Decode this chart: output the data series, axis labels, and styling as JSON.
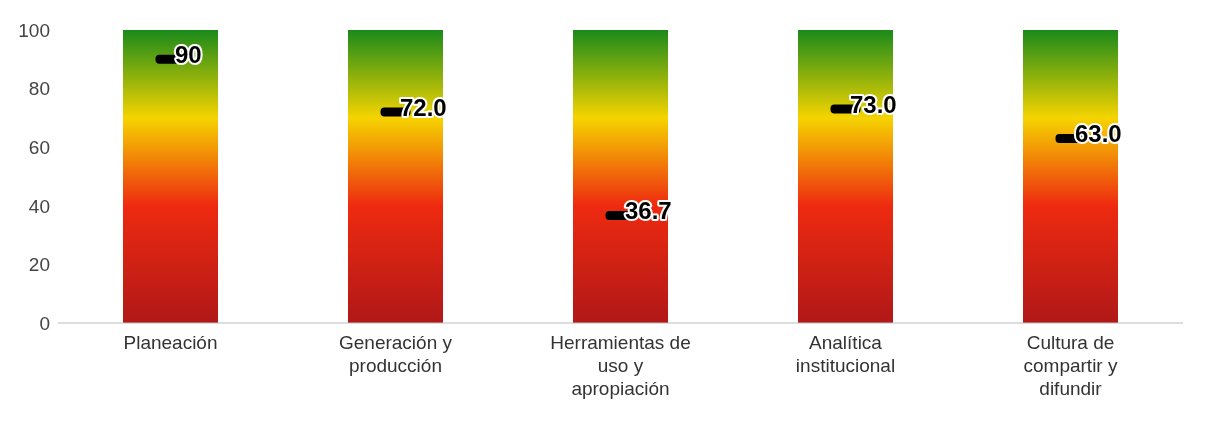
{
  "chart_data": {
    "type": "bar",
    "categories": [
      "Planeación",
      "Generación y producción",
      "Herramientas de uso y apropiación",
      "Analítica institucional",
      "Cultura de compartir y difundir"
    ],
    "series": [
      {
        "type": "bar",
        "color": "#f5d400",
        "values": [
          100,
          100,
          100,
          100,
          100
        ]
      },
      {
        "type": "scatter",
        "color": "#000000",
        "values": [
          90,
          72.0,
          36.7,
          73.0,
          63.0
        ],
        "value_labels": [
          "90",
          "72.0",
          "36.7",
          "73.0",
          "63.0"
        ]
      }
    ],
    "ylim": [
      0,
      100
    ],
    "yticks": [
      0,
      20,
      40,
      60,
      80,
      100
    ],
    "grid": false,
    "marker": "square",
    "legend": false
  }
}
